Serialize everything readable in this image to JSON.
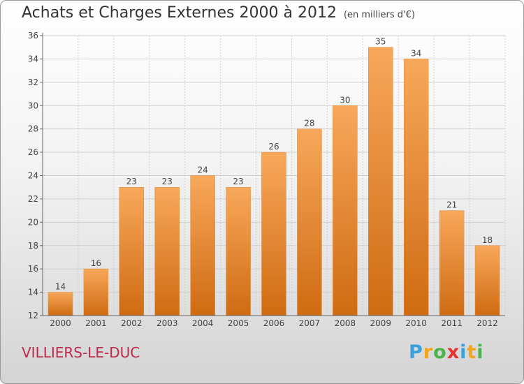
{
  "title": "Achats et Charges Externes 2000 à 2012",
  "subtitle": "(en milliers d'€)",
  "commune": "VILLIERS-LE-DUC",
  "logo": {
    "letters": [
      {
        "ch": "P",
        "color": "#3aa0dc"
      },
      {
        "ch": "r",
        "color": "#f2a51a"
      },
      {
        "ch": "o",
        "color": "#4bb34b"
      },
      {
        "ch": "x",
        "color": "#e8342c"
      },
      {
        "ch": "i",
        "color": "#3aa0dc"
      },
      {
        "ch": "t",
        "color": "#f2a51a"
      },
      {
        "ch": "i",
        "color": "#4bb34b"
      }
    ]
  },
  "chart_data": {
    "type": "bar",
    "categories": [
      "2000",
      "2001",
      "2002",
      "2003",
      "2004",
      "2005",
      "2006",
      "2007",
      "2008",
      "2009",
      "2010",
      "2011",
      "2012"
    ],
    "values": [
      14,
      16,
      23,
      23,
      24,
      23,
      26,
      28,
      30,
      35,
      34,
      21,
      18
    ],
    "ylim": [
      12,
      36
    ],
    "yticks": [
      12,
      14,
      16,
      18,
      20,
      22,
      24,
      26,
      28,
      30,
      32,
      34,
      36
    ],
    "grid": true,
    "bar_color": "#f0922e",
    "xlabel": "",
    "ylabel": ""
  }
}
